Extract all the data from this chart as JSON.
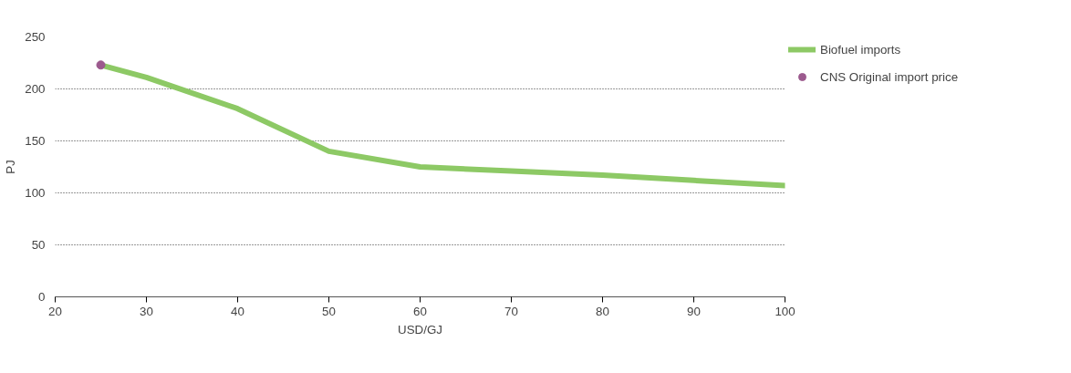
{
  "chart_data": {
    "type": "line",
    "xlabel": "USD/GJ",
    "ylabel": "PJ",
    "xlim": [
      20,
      100
    ],
    "xticks": [
      20,
      30,
      40,
      50,
      60,
      70,
      80,
      90,
      100
    ],
    "ylim": [
      0,
      250
    ],
    "yticks": [
      0,
      50,
      100,
      150,
      200,
      250
    ],
    "grid": "y",
    "legend": "right",
    "series": [
      {
        "name": "Biofuel imports",
        "color": "#8dc965",
        "x": [
          25,
          30,
          40,
          50,
          60,
          70,
          80,
          90,
          100
        ],
        "values": [
          223,
          211,
          181,
          140,
          125,
          121,
          117,
          112,
          107
        ]
      },
      {
        "name": "CNS Original import price",
        "type": "scatter",
        "color": "#9c5a8e",
        "x": [
          25
        ],
        "values": [
          223
        ]
      }
    ]
  }
}
